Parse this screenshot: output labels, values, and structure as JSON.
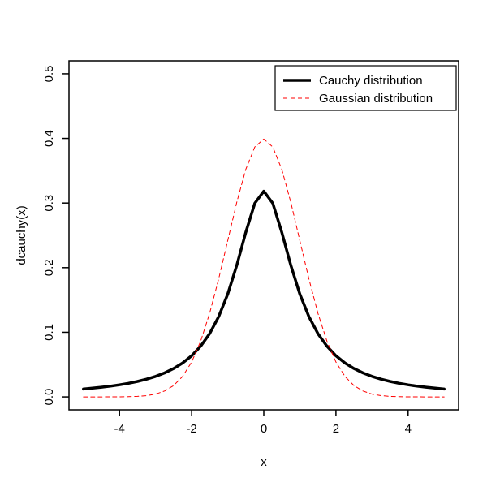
{
  "figure": {
    "background": "#ffffff",
    "foreground": "#000000"
  },
  "chart_data": {
    "type": "line",
    "title": "",
    "xlabel": "x",
    "ylabel": "dcauchy(x)",
    "xlim": [
      -5.4,
      5.4
    ],
    "ylim": [
      -0.02,
      0.52
    ],
    "x_ticks": [
      -4,
      -2,
      0,
      2,
      4
    ],
    "x_tick_labels": [
      "-4",
      "-2",
      "0",
      "2",
      "4"
    ],
    "y_ticks": [
      0.0,
      0.1,
      0.2,
      0.3,
      0.4,
      0.5
    ],
    "y_tick_labels": [
      "0.0",
      "0.1",
      "0.2",
      "0.3",
      "0.4",
      "0.5"
    ],
    "grid": false,
    "legend_position": "top-right",
    "x": [
      -5.0,
      -4.75,
      -4.5,
      -4.25,
      -4.0,
      -3.75,
      -3.5,
      -3.25,
      -3.0,
      -2.75,
      -2.5,
      -2.25,
      -2.0,
      -1.75,
      -1.5,
      -1.25,
      -1.0,
      -0.75,
      -0.5,
      -0.25,
      0.0,
      0.25,
      0.5,
      0.75,
      1.0,
      1.25,
      1.5,
      1.75,
      2.0,
      2.25,
      2.5,
      2.75,
      3.0,
      3.25,
      3.5,
      3.75,
      4.0,
      4.25,
      4.5,
      4.75,
      5.0
    ],
    "series": [
      {
        "name": "Cauchy distribution",
        "color": "#000000",
        "dash": "solid",
        "width": 3.5,
        "values": [
          0.0122,
          0.0135,
          0.015,
          0.0167,
          0.0187,
          0.0211,
          0.024,
          0.0275,
          0.0318,
          0.0372,
          0.0439,
          0.0525,
          0.0637,
          0.0784,
          0.0979,
          0.1242,
          0.1592,
          0.2037,
          0.2546,
          0.2996,
          0.3183,
          0.2996,
          0.2546,
          0.2037,
          0.1592,
          0.1242,
          0.0979,
          0.0784,
          0.0637,
          0.0525,
          0.0439,
          0.0372,
          0.0318,
          0.0275,
          0.024,
          0.0211,
          0.0187,
          0.0167,
          0.015,
          0.0135,
          0.0122
        ]
      },
      {
        "name": "Gaussian distribution",
        "color": "#ff0000",
        "dash": "dashed",
        "width": 1,
        "values": [
          0.0,
          0.0,
          0.0,
          0.0001,
          0.0001,
          0.0004,
          0.0009,
          0.002,
          0.0044,
          0.0091,
          0.0175,
          0.0317,
          0.054,
          0.0863,
          0.1295,
          0.1826,
          0.242,
          0.3011,
          0.3521,
          0.3867,
          0.3989,
          0.3867,
          0.3521,
          0.3011,
          0.242,
          0.1826,
          0.1295,
          0.0863,
          0.054,
          0.0317,
          0.0175,
          0.0091,
          0.0044,
          0.002,
          0.0009,
          0.0004,
          0.0001,
          0.0001,
          0.0,
          0.0,
          0.0
        ]
      }
    ]
  }
}
